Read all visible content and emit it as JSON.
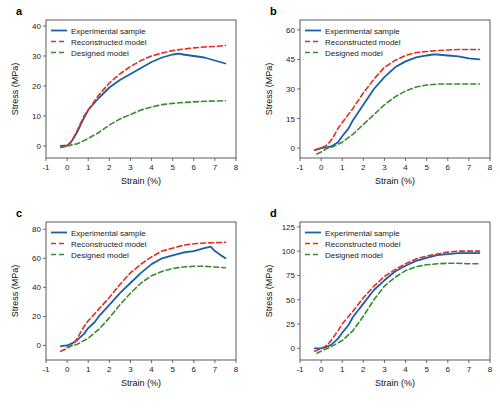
{
  "chart_data": [
    {
      "type": "line",
      "title": "a",
      "xlabel": "Strain (%)",
      "ylabel": "Stress (MPa)",
      "xlim": [
        -1,
        8
      ],
      "xticks": [
        -1,
        0,
        1,
        2,
        3,
        4,
        5,
        6,
        7,
        8
      ],
      "ylim": [
        -4,
        42
      ],
      "yticks": [
        0,
        10,
        20,
        30,
        40
      ],
      "grid": false,
      "legend": "upper left",
      "series": [
        {
          "name": "Experimental sample",
          "color": "#1a5fa8",
          "line_style": "solid",
          "x": [
            -0.3,
            0,
            0.15,
            0.3,
            0.5,
            0.7,
            1.0,
            1.5,
            2.0,
            2.5,
            3.0,
            3.5,
            4.0,
            4.5,
            5.0,
            5.3,
            5.5,
            6.0,
            6.5,
            7.0,
            7.5
          ],
          "values": [
            0,
            0.2,
            1.0,
            2.5,
            5,
            8,
            12,
            16,
            19.5,
            22,
            24,
            26,
            28,
            29.5,
            30.5,
            30.8,
            30.5,
            30,
            29.5,
            28.5,
            27.5
          ]
        },
        {
          "name": "Reconstructed model",
          "color": "#e03020",
          "line_style": "dashed",
          "x": [
            -0.3,
            0,
            0.2,
            0.4,
            0.6,
            0.8,
            1.0,
            1.5,
            2.0,
            2.5,
            3.0,
            3.5,
            4.0,
            4.5,
            5.0,
            5.5,
            6.0,
            6.5,
            7.0,
            7.5
          ],
          "values": [
            -0.5,
            0,
            1.5,
            4,
            7,
            10,
            12,
            17,
            21,
            24,
            26.5,
            28.5,
            30,
            31,
            31.8,
            32.3,
            32.7,
            33,
            33.2,
            33.5
          ]
        },
        {
          "name": "Designed model",
          "color": "#3a8a30",
          "line_style": "dashed",
          "x": [
            0,
            0.5,
            1.0,
            1.5,
            2.0,
            2.5,
            3.0,
            3.5,
            4.0,
            4.5,
            5.0,
            5.5,
            6.0,
            6.5,
            7.0,
            7.5
          ],
          "values": [
            0,
            0.8,
            2.5,
            4.5,
            7,
            9,
            10.5,
            12,
            13,
            13.8,
            14.2,
            14.5,
            14.7,
            14.9,
            15.0,
            15.1
          ]
        }
      ]
    },
    {
      "type": "line",
      "title": "b",
      "xlabel": "Strain (%)",
      "ylabel": "Stress (MPa)",
      "xlim": [
        -1,
        8
      ],
      "xticks": [
        -1,
        0,
        1,
        2,
        3,
        4,
        5,
        6,
        7,
        8
      ],
      "ylim": [
        -5,
        65
      ],
      "yticks": [
        0,
        15,
        30,
        45,
        60
      ],
      "grid": false,
      "legend": "upper left",
      "series": [
        {
          "name": "Experimental sample",
          "color": "#1a5fa8",
          "line_style": "solid",
          "x": [
            -0.3,
            0,
            0.1,
            0.3,
            0.5,
            0.8,
            1.0,
            1.3,
            1.5,
            2.0,
            2.5,
            3.0,
            3.5,
            4.0,
            4.5,
            5.0,
            5.3,
            5.5,
            6.0,
            6.5,
            7.0,
            7.5
          ],
          "values": [
            -1,
            0,
            0.2,
            0.5,
            1,
            3,
            6,
            10,
            14,
            22,
            30,
            36,
            41,
            44,
            46,
            47,
            47.5,
            47.5,
            47,
            46.5,
            45.5,
            45
          ]
        },
        {
          "name": "Reconstructed model",
          "color": "#e03020",
          "line_style": "dashed",
          "x": [
            -0.3,
            0,
            0.2,
            0.4,
            0.6,
            0.8,
            1.0,
            1.5,
            2.0,
            2.5,
            3.0,
            3.5,
            4.0,
            4.5,
            5.0,
            5.5,
            6.0,
            6.5,
            7.0,
            7.5
          ],
          "values": [
            -1,
            0,
            1,
            3,
            6,
            10,
            13,
            20,
            28,
            35,
            41,
            44.5,
            47,
            48.5,
            49,
            49.5,
            49.8,
            50,
            50,
            50
          ]
        },
        {
          "name": "Designed model",
          "color": "#3a8a30",
          "line_style": "dashed",
          "x": [
            -0.2,
            0,
            0.3,
            0.5,
            1.0,
            1.5,
            2.0,
            2.5,
            3.0,
            3.5,
            4.0,
            4.5,
            5.0,
            5.5,
            6.0,
            6.5,
            7.0,
            7.5
          ],
          "values": [
            -3,
            -2,
            0,
            0.5,
            3,
            7,
            12,
            17,
            22,
            26,
            29,
            31,
            32,
            32.5,
            32.5,
            32.5,
            32.5,
            32.5
          ]
        }
      ]
    },
    {
      "type": "line",
      "title": "c",
      "xlabel": "Strain (%)",
      "ylabel": "Stress (MPa)",
      "xlim": [
        -1,
        8
      ],
      "xticks": [
        -1,
        0,
        1,
        2,
        3,
        4,
        5,
        6,
        7,
        8
      ],
      "ylim": [
        -10,
        85
      ],
      "yticks": [
        0,
        20,
        40,
        60,
        80
      ],
      "grid": false,
      "legend": "upper left",
      "series": [
        {
          "name": "Experimental sample",
          "color": "#1a5fa8",
          "line_style": "solid",
          "x": [
            -0.3,
            0,
            0.15,
            0.3,
            0.5,
            0.8,
            1.0,
            1.3,
            1.5,
            2.0,
            2.5,
            3.0,
            3.5,
            4.0,
            4.5,
            5.0,
            5.5,
            6.0,
            6.5,
            6.8,
            7.0,
            7.3,
            7.5
          ],
          "values": [
            -0.5,
            0,
            1,
            2,
            4,
            8,
            12,
            16,
            20,
            28,
            36,
            43,
            50,
            56,
            60,
            62,
            64,
            65,
            67,
            68,
            65,
            62,
            60
          ]
        },
        {
          "name": "Reconstructed model",
          "color": "#e03020",
          "line_style": "dashed",
          "x": [
            -0.3,
            0,
            0.2,
            0.4,
            0.6,
            0.8,
            1.0,
            1.5,
            2.0,
            2.5,
            3.0,
            3.5,
            4.0,
            4.5,
            5.0,
            5.5,
            6.0,
            6.5,
            7.0,
            7.5
          ],
          "values": [
            -4,
            -2,
            0,
            3,
            8,
            13,
            17,
            25,
            33,
            42,
            50,
            56,
            61,
            65,
            67,
            69,
            70,
            70.5,
            70.8,
            71
          ]
        },
        {
          "name": "Designed model",
          "color": "#3a8a30",
          "line_style": "dashed",
          "x": [
            0,
            0.3,
            0.5,
            1.0,
            1.5,
            2.0,
            2.5,
            3.0,
            3.5,
            4.0,
            4.5,
            5.0,
            5.5,
            6.0,
            6.5,
            7.0,
            7.5
          ],
          "values": [
            -1,
            0,
            1,
            5,
            11,
            19,
            28,
            36,
            43,
            48,
            51,
            53,
            54,
            54.5,
            54.5,
            54,
            53.5
          ]
        }
      ]
    },
    {
      "type": "line",
      "title": "d",
      "xlabel": "Strain (%)",
      "ylabel": "Stress (MPa)",
      "xlim": [
        -1,
        8
      ],
      "xticks": [
        -1,
        0,
        1,
        2,
        3,
        4,
        5,
        6,
        7,
        8
      ],
      "ylim": [
        -12,
        130
      ],
      "yticks": [
        0,
        25,
        50,
        75,
        100,
        125
      ],
      "grid": false,
      "legend": "upper left",
      "series": [
        {
          "name": "Experimental sample",
          "color": "#1a5fa8",
          "line_style": "solid",
          "x": [
            -0.3,
            0,
            0.1,
            0.3,
            0.5,
            0.8,
            1.0,
            1.3,
            1.5,
            2.0,
            2.5,
            3.0,
            3.5,
            4.0,
            4.5,
            5.0,
            5.5,
            6.0,
            6.5,
            7.0,
            7.5
          ],
          "values": [
            0,
            0,
            0.5,
            2,
            4,
            10,
            16,
            24,
            32,
            46,
            60,
            70,
            79,
            85,
            90,
            93,
            96,
            97,
            98,
            98,
            98
          ]
        },
        {
          "name": "Reconstructed model",
          "color": "#e03020",
          "line_style": "dashed",
          "x": [
            -0.3,
            0,
            0.2,
            0.4,
            0.6,
            0.8,
            1.0,
            1.5,
            2.0,
            2.5,
            3.0,
            3.5,
            4.0,
            4.5,
            5.0,
            5.5,
            6.0,
            6.5,
            7.0,
            7.5
          ],
          "values": [
            -3,
            0,
            2,
            6,
            12,
            18,
            25,
            38,
            52,
            64,
            74,
            81,
            87,
            92,
            95,
            97,
            99,
            100,
            100,
            100
          ]
        },
        {
          "name": "Designed model",
          "color": "#3a8a30",
          "line_style": "dashed",
          "x": [
            -0.2,
            0,
            0.3,
            0.5,
            1.0,
            1.5,
            2.0,
            2.5,
            3.0,
            3.5,
            4.0,
            4.5,
            5.0,
            5.5,
            6.0,
            6.5,
            7.0,
            7.5
          ],
          "values": [
            -5,
            -3,
            0,
            2,
            8,
            18,
            33,
            50,
            64,
            73,
            80,
            84,
            86,
            87,
            87.5,
            87.5,
            87,
            87
          ]
        }
      ]
    }
  ]
}
